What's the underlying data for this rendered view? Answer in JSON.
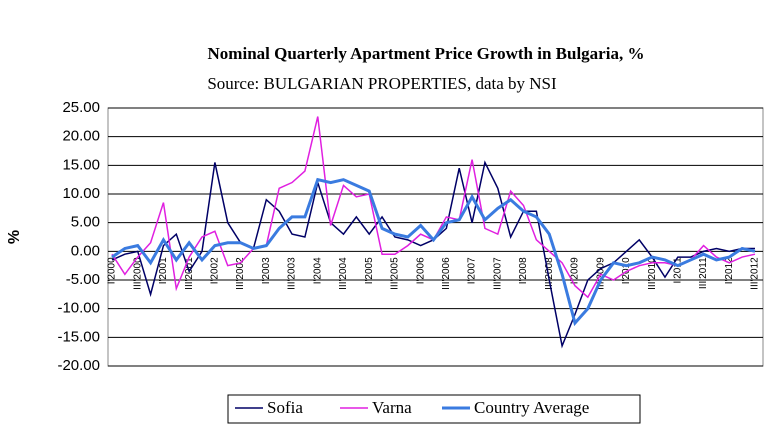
{
  "chart_data": {
    "type": "line",
    "title": "Nominal Quarterly Apartment Price Growth in Bulgaria, %",
    "subtitle": "Source: BULGARIAN PROPERTIES, data by NSI",
    "y_label": "%",
    "categories": [
      "I'2000",
      null,
      "III'2000",
      null,
      "I'2001",
      null,
      "III'2001",
      null,
      "I'2002",
      null,
      "III'2002",
      null,
      "I'2003",
      null,
      "III'2003",
      null,
      "I'2004",
      null,
      "III'2004",
      null,
      "I'2005",
      null,
      "III'2005",
      null,
      "I'2006",
      null,
      "III'2006",
      null,
      "I'2007",
      null,
      "III'2007",
      null,
      "I'2008",
      null,
      "III'2008",
      null,
      "I'2009",
      null,
      "III'2009",
      null,
      "I'2010",
      null,
      "III'2010",
      null,
      "I'2011",
      null,
      "III'2011",
      null,
      "I'2012",
      null,
      "III'2012"
    ],
    "series": [
      {
        "name": "Sofia",
        "color": "#000066",
        "values": [
          -1.5,
          -0.5,
          0,
          -7.5,
          1,
          3,
          -3.5,
          0,
          15.5,
          5,
          1.5,
          0.5,
          9,
          7,
          3,
          2.5,
          12,
          5,
          3,
          6,
          3,
          6,
          2.5,
          2,
          1,
          2,
          4,
          14.5,
          5,
          15.5,
          11,
          2.5,
          7,
          7,
          -5,
          -16.5,
          -11,
          -5,
          -3,
          -2,
          0,
          2,
          -1,
          -4.5,
          -1,
          -1,
          0,
          0.5,
          0,
          0.5,
          0.5
        ]
      },
      {
        "name": "Varna",
        "color": "#e020e0",
        "values": [
          -0.5,
          -4,
          -1,
          1.5,
          8.5,
          -6.5,
          -1,
          2.5,
          3.5,
          -2.5,
          -2,
          0.5,
          1,
          11,
          12,
          14,
          23.5,
          4.5,
          11.5,
          9.5,
          10,
          -0.5,
          -0.5,
          1,
          3,
          2,
          6,
          5.5,
          16,
          4,
          3,
          10.5,
          8,
          2,
          0,
          -2,
          -6,
          -8,
          -4,
          -5,
          -3.5,
          -2.5,
          -2,
          -2,
          -2.5,
          -1.5,
          1,
          -1,
          -2,
          -1,
          -0.5
        ]
      },
      {
        "name": "Country Average",
        "color": "#3a7be0",
        "values": [
          -1,
          0.5,
          1,
          -2,
          2,
          -1.5,
          1.5,
          -1.5,
          1,
          1.5,
          1.5,
          0.5,
          1,
          4,
          6,
          6,
          12.5,
          12,
          12.5,
          11.5,
          10.5,
          4,
          3,
          2.5,
          4.5,
          2,
          5,
          5.5,
          9.5,
          5.5,
          7.5,
          9,
          7,
          6,
          3,
          -4,
          -12.5,
          -10,
          -5,
          -2,
          -2.5,
          -2,
          -1,
          -1.5,
          -2.5,
          -1.5,
          -0.5,
          -1.5,
          -1,
          0.5,
          0
        ]
      }
    ],
    "ylim": [
      -20,
      25
    ],
    "yticks": [
      {
        "value": -20,
        "label": "-20.00"
      },
      {
        "value": -15,
        "label": "-15.00"
      },
      {
        "value": -10,
        "label": "-10.00"
      },
      {
        "value": -5,
        "label": "-5.00"
      },
      {
        "value": 0,
        "label": "0.00"
      },
      {
        "value": 5,
        "label": "5.00"
      },
      {
        "value": 10,
        "label": "10.00"
      },
      {
        "value": 15,
        "label": "15.00"
      },
      {
        "value": 20,
        "label": "20.00"
      },
      {
        "value": 25,
        "label": "25.00"
      }
    ],
    "grid": true,
    "legend": "bottom"
  }
}
